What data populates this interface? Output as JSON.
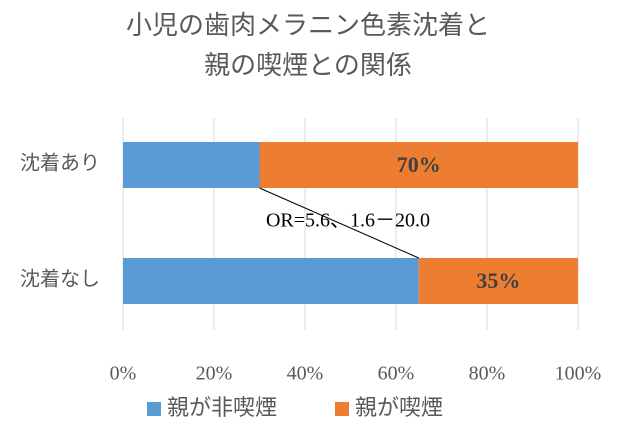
{
  "chart_data": {
    "type": "stacked_barh",
    "title": [
      "小児の歯肉メラニン色素沈着と",
      "親の喫煙との関係"
    ],
    "categories": [
      "沈着あり",
      "沈着なし"
    ],
    "series": [
      {
        "name": "親が非喫煙",
        "color": "#5b9bd5",
        "values": [
          30,
          65
        ]
      },
      {
        "name": "親が喫煙",
        "color": "#ed7d31",
        "values": [
          70,
          35
        ],
        "value_labels": [
          "70%",
          "35%"
        ]
      }
    ],
    "annotation": "OR=5.6、1.6－20.0",
    "xlim": [
      0,
      100
    ],
    "xticks": [
      {
        "value": 0,
        "label": "0%"
      },
      {
        "value": 20,
        "label": "20%"
      },
      {
        "value": 40,
        "label": "40%"
      },
      {
        "value": 60,
        "label": "60%"
      },
      {
        "value": 80,
        "label": "80%"
      },
      {
        "value": 100,
        "label": "100%"
      }
    ],
    "grid": true,
    "legend": "bottom"
  }
}
